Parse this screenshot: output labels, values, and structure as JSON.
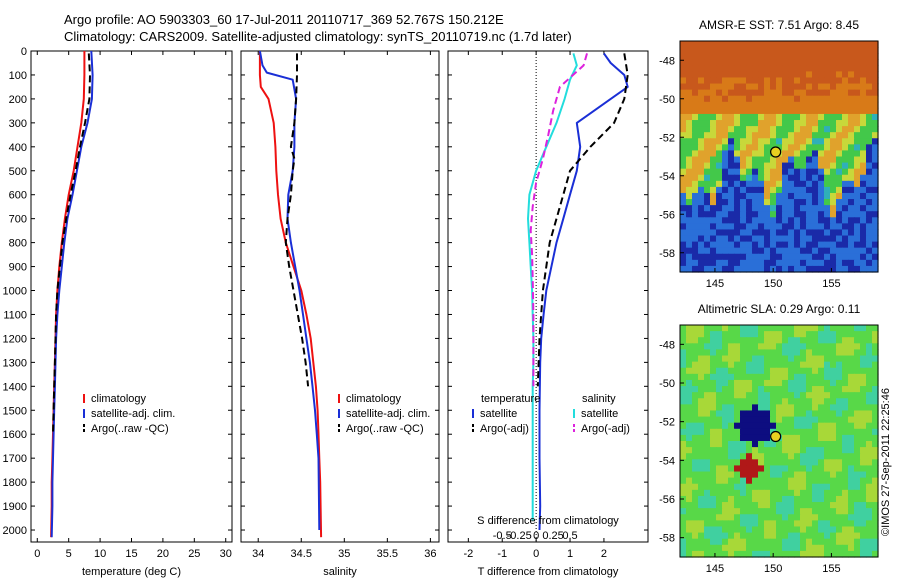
{
  "header": {
    "line1": "Argo profile: AO 5903303_60 17-Jul-2011 20110717_369 52.767S 150.212E",
    "line2": "Climatology: CARS2009. Satellite-adjusted climatology: synTS_20110719.nc (1.7d later)"
  },
  "side_text": "©IMOS 27-Sep-2011 22:25:46",
  "colors": {
    "clim": "#ee1111",
    "sat": "#1a2fd6",
    "argo": "#000000",
    "sal_sat": "#22dddd",
    "sal_argo": "#dd22dd"
  },
  "chart_data": [
    {
      "type": "line",
      "id": "temperature",
      "xlabel": "temperature (deg C)",
      "ylabel": "",
      "xlim": [
        -1,
        31
      ],
      "ylim": [
        2050,
        0
      ],
      "xticks": [
        0,
        5,
        10,
        15,
        20,
        25,
        30
      ],
      "yticks": [
        0,
        100,
        200,
        300,
        400,
        500,
        600,
        700,
        800,
        900,
        1000,
        1100,
        1200,
        1300,
        1400,
        1500,
        1600,
        1700,
        1800,
        1900,
        2000
      ],
      "legend": [
        "climatology",
        "satellite-adj. clim.",
        "Argo(..raw -QC)"
      ],
      "series": [
        {
          "name": "climatology",
          "color": "clim",
          "dash": false,
          "x": [
            7.5,
            7.5,
            7.4,
            7.0,
            6.4,
            5.8,
            5.0,
            4.4,
            3.9,
            3.5,
            3.2,
            3.0,
            2.9,
            2.8,
            2.7,
            2.6,
            2.5,
            2.4,
            2.3,
            2.3,
            2.2
          ],
          "y": [
            0,
            100,
            200,
            300,
            400,
            500,
            600,
            700,
            800,
            900,
            1000,
            1100,
            1200,
            1300,
            1400,
            1500,
            1600,
            1700,
            1800,
            1900,
            2030
          ]
        },
        {
          "name": "satellite-adj. clim.",
          "color": "sat",
          "dash": false,
          "x": [
            8.6,
            8.8,
            8.7,
            8.0,
            7.0,
            6.3,
            5.6,
            4.8,
            4.3,
            3.9,
            3.5,
            3.2,
            3.0,
            2.9,
            2.8,
            2.7,
            2.6,
            2.5,
            2.4,
            2.4,
            2.3
          ],
          "y": [
            0,
            100,
            200,
            300,
            400,
            500,
            600,
            700,
            800,
            900,
            1000,
            1100,
            1200,
            1300,
            1400,
            1500,
            1600,
            1700,
            1800,
            1900,
            2030
          ]
        },
        {
          "name": "Argo(..raw -QC)",
          "color": "argo",
          "dash": true,
          "x": [
            8.2,
            8.4,
            8.3,
            7.6,
            6.8,
            6.1,
            5.3,
            4.6,
            4.0,
            3.6,
            3.2,
            3.0,
            2.9,
            2.8,
            2.7,
            2.6,
            2.5
          ],
          "y": [
            10,
            100,
            200,
            300,
            400,
            500,
            600,
            700,
            800,
            900,
            1000,
            1100,
            1200,
            1300,
            1400,
            1500,
            1600
          ]
        }
      ]
    },
    {
      "type": "line",
      "id": "salinity",
      "xlabel": "salinity",
      "ylabel": "",
      "xlim": [
        33.8,
        36.1
      ],
      "ylim": [
        2050,
        0
      ],
      "xticks": [
        34,
        34.5,
        35,
        35.5,
        36
      ],
      "legend": [
        "climatology",
        "satellite-adj. clim.",
        "Argo(..raw -QC)"
      ],
      "series": [
        {
          "name": "climatology",
          "color": "clim",
          "dash": false,
          "x": [
            34.02,
            34.02,
            34.03,
            34.12,
            34.18,
            34.2,
            34.21,
            34.23,
            34.26,
            34.32,
            34.41,
            34.5,
            34.56,
            34.61,
            34.64,
            34.67,
            34.69,
            34.7,
            34.71,
            34.72,
            34.73
          ],
          "y": [
            0,
            100,
            150,
            200,
            300,
            400,
            500,
            600,
            700,
            800,
            900,
            1000,
            1100,
            1200,
            1300,
            1400,
            1500,
            1600,
            1700,
            1800,
            2030
          ]
        },
        {
          "name": "satellite-adj. clim.",
          "color": "sat",
          "dash": false,
          "x": [
            34.02,
            34.05,
            34.1,
            34.4,
            34.44,
            34.42,
            34.42,
            34.4,
            34.35,
            34.34,
            34.38,
            34.43,
            34.48,
            34.52,
            34.56,
            34.6,
            34.63,
            34.66,
            34.68,
            34.7,
            34.71
          ],
          "y": [
            0,
            60,
            90,
            120,
            200,
            300,
            400,
            500,
            600,
            700,
            800,
            900,
            1000,
            1100,
            1200,
            1300,
            1400,
            1500,
            1600,
            1700,
            2000
          ]
        },
        {
          "name": "Argo(..raw -QC)",
          "color": "argo",
          "dash": true,
          "x": [
            34.45,
            34.45,
            34.44,
            34.42,
            34.38,
            34.42,
            34.4,
            34.38,
            34.34,
            34.32,
            34.36,
            34.41,
            34.46,
            34.51,
            34.55,
            34.58
          ],
          "y": [
            10,
            100,
            200,
            300,
            400,
            450,
            500,
            600,
            700,
            800,
            900,
            1000,
            1100,
            1200,
            1300,
            1400
          ]
        }
      ]
    },
    {
      "type": "line",
      "id": "differences",
      "xlabel": "T difference from climatology",
      "xlabel2": "S difference from climatology",
      "xlim": [
        -2.6,
        3.3
      ],
      "ylim": [
        2050,
        0
      ],
      "xticks": [
        -2,
        -1,
        0,
        1,
        2
      ],
      "xticks2": [
        -0.5,
        -0.25,
        0,
        0.25,
        0.5
      ],
      "xtick2_labels": [
        "-0.5",
        "-0.25",
        "0",
        "0.25",
        "0.5"
      ],
      "legend": {
        "temperature_title": "temperature",
        "temperature_items": [
          "satellite",
          "Argo(-adj)"
        ],
        "salinity_title": "salinity",
        "salinity_items": [
          "satellite",
          "Argo(-adj)"
        ]
      },
      "series": [
        {
          "name": "temperature satellite",
          "color": "sat",
          "dash": false,
          "x": [
            2.0,
            2.2,
            2.6,
            2.7,
            2.2,
            1.2,
            1.3,
            1.2,
            1.0,
            0.8,
            0.6,
            0.45,
            0.3,
            0.22,
            0.15,
            0.12,
            0.1,
            0.1,
            0.12,
            0.1
          ],
          "y": [
            10,
            50,
            100,
            150,
            200,
            300,
            400,
            500,
            600,
            700,
            800,
            900,
            1000,
            1100,
            1200,
            1300,
            1500,
            1700,
            1900,
            2000
          ]
        },
        {
          "name": "temperature Argo(-adj)",
          "color": "argo",
          "dash": true,
          "x": [
            2.6,
            2.7,
            2.6,
            2.3,
            1.6,
            1.0,
            0.8,
            0.6,
            0.4,
            0.3,
            0.2,
            0.15,
            0.1,
            0.05
          ],
          "y": [
            10,
            100,
            200,
            300,
            400,
            500,
            600,
            700,
            800,
            900,
            1000,
            1100,
            1200,
            1400
          ]
        },
        {
          "name": "salinity satellite",
          "color": "sal_sat",
          "dash": false,
          "x": [
            0.55,
            0.6,
            0.5,
            0.42,
            0.3,
            0.15,
            0.0,
            -0.1,
            -0.12,
            -0.1,
            -0.08,
            -0.06,
            -0.05,
            -0.04,
            -0.04,
            -0.05,
            -0.05,
            -0.05,
            -0.05
          ],
          "y": [
            10,
            60,
            120,
            200,
            300,
            400,
            500,
            600,
            700,
            800,
            900,
            1000,
            1100,
            1200,
            1300,
            1400,
            1600,
            1800,
            1960
          ]
        },
        {
          "name": "salinity Argo(-adj)",
          "color": "sal_argo",
          "dash": true,
          "x": [
            0.75,
            0.7,
            0.35,
            0.25,
            0.18,
            0.1,
            0.0,
            -0.05,
            -0.08,
            -0.06,
            -0.05,
            -0.04,
            -0.04,
            -0.04
          ],
          "y": [
            10,
            60,
            150,
            250,
            350,
            450,
            550,
            650,
            750,
            850,
            950,
            1100,
            1300,
            1400
          ]
        }
      ]
    },
    {
      "type": "heatmap",
      "id": "sst_map",
      "title": "AMSR-E SST: 7.51 Argo: 8.45",
      "xlim": [
        142,
        159
      ],
      "ylim": [
        -59,
        -47
      ],
      "xticks": [
        145,
        150,
        155
      ],
      "yticks": [
        -48,
        -50,
        -52,
        -54,
        -56,
        -58
      ],
      "marker": {
        "lon": 150.212,
        "lat": -52.767
      }
    },
    {
      "type": "heatmap",
      "id": "sla_map",
      "title": "Altimetric SLA: 0.29 Argo: 0.11",
      "xlim": [
        142,
        159
      ],
      "ylim": [
        -59,
        -47
      ],
      "xticks": [
        145,
        150,
        155
      ],
      "yticks": [
        -48,
        -50,
        -52,
        -54,
        -56,
        -58
      ],
      "marker": {
        "lon": 150.212,
        "lat": -52.767
      }
    }
  ]
}
